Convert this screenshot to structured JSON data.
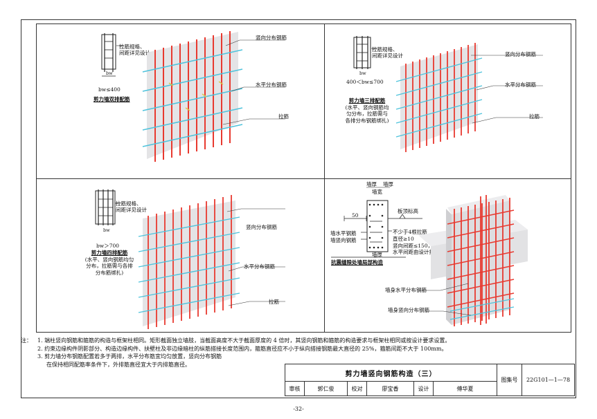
{
  "panel1": {
    "tie_note": [
      "拉筋规格、",
      "间距详见设计"
    ],
    "dim_label": "bw",
    "condition": "bw≤400",
    "caption": "剪力墙双排配筋",
    "label_vertical": "竖向分布钢筋",
    "label_horizontal": "水平分布钢筋",
    "label_tie": "拉筋"
  },
  "panel2": {
    "tie_note": [
      "拉筋规格、",
      "间距详见设计"
    ],
    "dim_label": "bw",
    "condition": "400＜bw≤700",
    "caption": "剪力墙三排配筋",
    "caption_sub": [
      "(水平、竖向钢筋均",
      "匀分布，拉筋需与",
      "各排分布钢筋绑扎)"
    ],
    "label_vertical": "竖向分布钢筋",
    "label_horizontal": "水平分布钢筋",
    "label_tie": "拉筋"
  },
  "panel3": {
    "tie_note": [
      "拉筋规格、",
      "间距详见设计"
    ],
    "dim_label": "bw",
    "condition": "bw＞700",
    "caption": "剪力墙四排配筋",
    "caption_sub": [
      "(水平、竖向钢筋均匀",
      "分布，拉筋需与各排",
      "分布筋绑扎)"
    ],
    "label_vertical": "竖向分布钢筋",
    "label_horizontal": "水平分布钢筋",
    "label_tie": "拉筋"
  },
  "panel4": {
    "top_labels": [
      "墙厚",
      "墙厚"
    ],
    "top_sub": "墙宽",
    "dim_50": "50",
    "slab_label": "板顶标高",
    "left_labels": [
      "墙水平钢筋",
      "墙竖向钢筋"
    ],
    "right_notes": [
      "不少于4根拉筋",
      "直径≥10",
      "竖向间距≤150，",
      "水平间距由设计指定"
    ],
    "bottom_label": "墙厚",
    "caption": "抗震缝隙处墙局部构造",
    "label_horizontal": "墙身水平分布钢筋",
    "label_vertical": "墙身竖向分布钢筋"
  },
  "notes": {
    "prefix": "注：",
    "items": [
      "1. 端柱竖向钢筋和箍筋的构造与框架柱相同。矩形截面独立墙肢，当截面高度不大于截面厚度的 4 倍时，其竖向钢筋和箍筋的构造要求与框架柱相同或按设计要求设置。",
      "2. 约束边缘构件阴影部分、构造边缘构件、扶壁柱及非边缘暗柱的纵筋搭接长度范围内，箍筋直径应不小于纵向搭接钢筋最大直径的 25%，箍筋间距不大于 100mm。",
      "3. 剪力墙分布钢筋配置若多于两排，水平分布筋宜均匀放置，竖向分布钢筋",
      "在保持相同配筋率条件下，外排筋直径宜大于内排筋直径。"
    ]
  },
  "title_block": {
    "title": "剪力墙竖向钢筋构造（三）",
    "atlas_label": "图集号",
    "atlas_no": "22G101—1—78",
    "review_label": "审核",
    "reviewer": "郭仁俊",
    "check_label": "校对",
    "checker": "廖宝香",
    "design_label": "设计",
    "designer": "傅华夏"
  },
  "page_number": "-32-",
  "colors": {
    "vertical_bar": "#e8392f",
    "horizontal_bar": "#4ec3dc",
    "tie_bar": "#d9c94a",
    "wall_face": "#e4e4e6",
    "line": "#333333"
  }
}
